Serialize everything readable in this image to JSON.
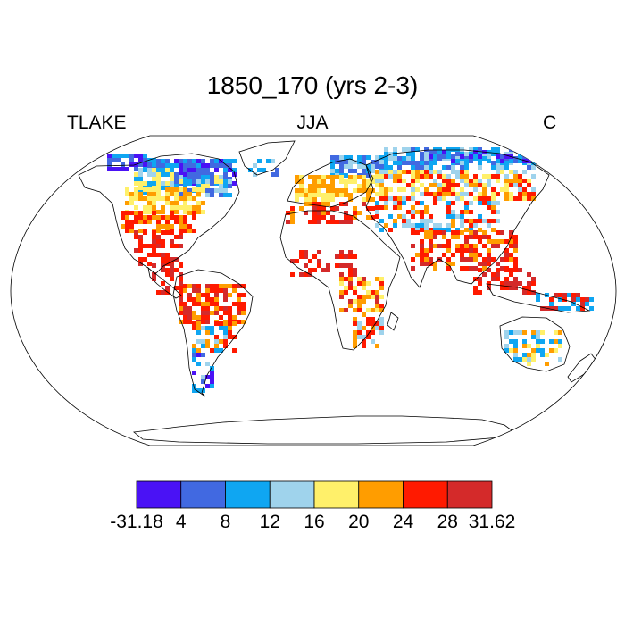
{
  "title": "1850_170 (yrs 2-3)",
  "left_label": "TLAKE",
  "center_label": "JJA",
  "right_label": "C",
  "colorbar": {
    "colors": [
      "#4a12f5",
      "#4169e1",
      "#0fa6f2",
      "#9fd3ec",
      "#fff06a",
      "#ff9d00",
      "#ff1a00",
      "#d42a2a"
    ],
    "labels": [
      "-31.18",
      "4",
      "8",
      "12",
      "16",
      "20",
      "24",
      "28",
      "31.62"
    ]
  },
  "map": {
    "projection": "robinson",
    "variable": "TLAKE",
    "units": "C",
    "land_outline_color": "#000000"
  }
}
